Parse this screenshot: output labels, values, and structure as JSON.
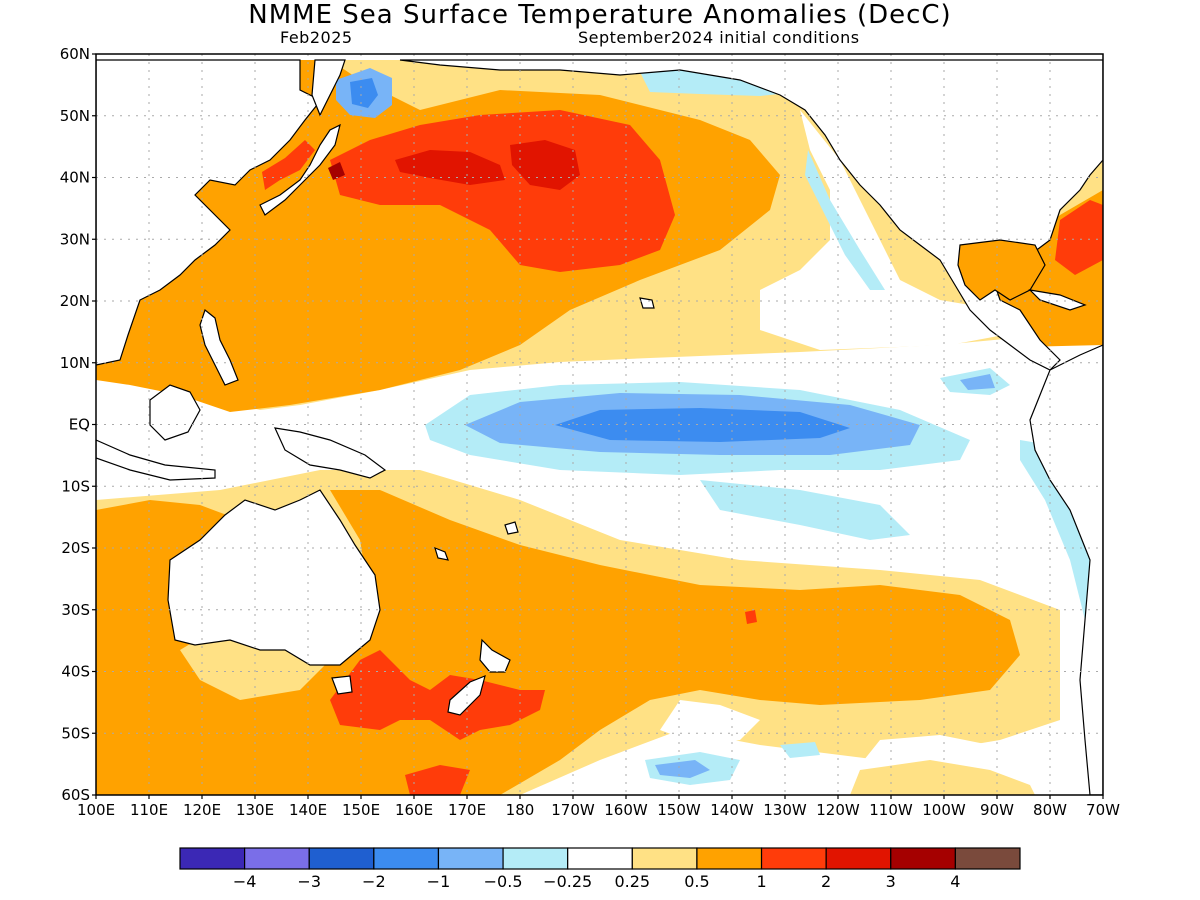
{
  "title": "NMME Sea Surface Temperature Anomalies (DecC)",
  "subtitle_left": "Feb2025",
  "subtitle_right": "September2024 initial conditions",
  "lat_labels": [
    "60N",
    "50N",
    "40N",
    "30N",
    "20N",
    "10N",
    "EQ",
    "10S",
    "20S",
    "30S",
    "40S",
    "50S",
    "60S"
  ],
  "lon_labels": [
    "100E",
    "110E",
    "120E",
    "130E",
    "140E",
    "150E",
    "160E",
    "170E",
    "180",
    "170W",
    "160W",
    "150W",
    "140W",
    "130W",
    "120W",
    "110W",
    "100W",
    "90W",
    "80W",
    "70W"
  ],
  "colorbar": {
    "colors": [
      "#3b28b5",
      "#7a6ee8",
      "#1f5fd0",
      "#3c8cf0",
      "#78b4f7",
      "#b4ecf7",
      "#ffffff",
      "#ffe185",
      "#ffa200",
      "#ff3c0a",
      "#e11400",
      "#a50000",
      "#7a4a3c"
    ],
    "labels": [
      "−4",
      "−3",
      "−2",
      "−1",
      "−0.5",
      "−0.25",
      "0.25",
      "0.5",
      "1",
      "2",
      "3",
      "4"
    ]
  },
  "colors": {
    "neg_light": "#b4ecf7",
    "neg_med": "#78b4f7",
    "neg_strong": "#3c8cf0",
    "pos_light": "#ffe185",
    "pos_med": "#ffa200",
    "pos_strong": "#ff3c0a",
    "pos_very": "#e11400",
    "pos_extreme": "#a50000",
    "grid": "#aaaaaa"
  }
}
